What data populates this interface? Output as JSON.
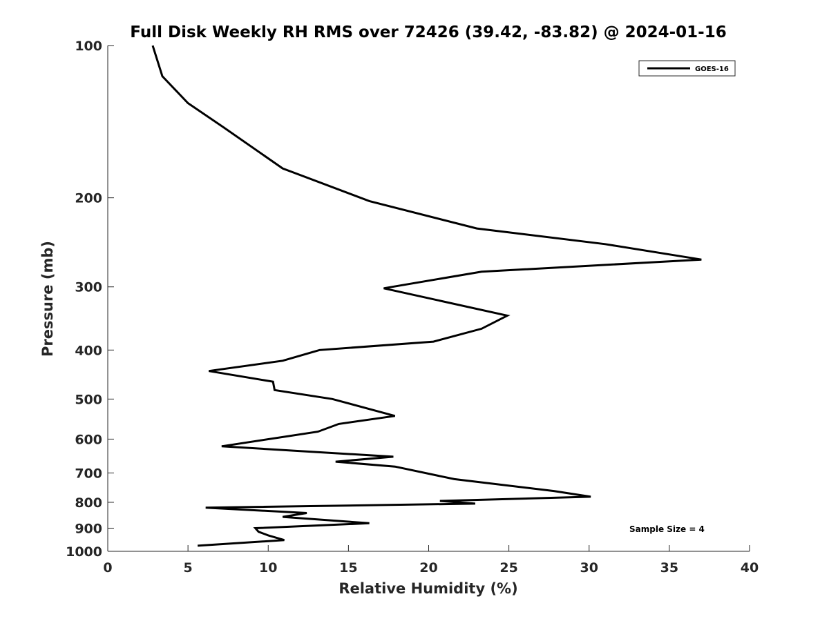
{
  "chart_data": {
    "type": "line",
    "title": "Full Disk Weekly RH RMS over 72426 (39.42, -83.82) @ 2024-01-16",
    "xlabel": "Relative Humidity (%)",
    "ylabel": "Pressure (mb)",
    "xlim": [
      0,
      40
    ],
    "ylim": [
      100,
      1000
    ],
    "y_scale": "log",
    "y_reversed": true,
    "x_ticks": [
      0,
      5,
      10,
      15,
      20,
      25,
      30,
      35,
      40
    ],
    "y_ticks": [
      100,
      200,
      300,
      400,
      500,
      600,
      700,
      800,
      900,
      1000
    ],
    "grid": false,
    "legend_position": "top-right",
    "annotation": "Sample Size = 4",
    "series": [
      {
        "name": "GOES-16",
        "color": "#000000",
        "x": [
          2.8,
          3.4,
          5.0,
          7.2,
          10.9,
          16.3,
          23.0,
          31.0,
          37.0,
          23.3,
          17.2,
          24.9,
          23.3,
          20.3,
          13.2,
          10.9,
          6.3,
          10.3,
          10.4,
          14.0,
          17.9,
          14.4,
          13.1,
          7.1,
          17.8,
          14.2,
          17.9,
          21.6,
          27.8,
          30.1,
          20.7,
          22.9,
          6.1,
          12.4,
          10.9,
          16.3,
          9.2,
          9.4,
          10.0,
          11.0,
          5.6
        ],
        "y": [
          100,
          115,
          130,
          145,
          175,
          203,
          230,
          247,
          265,
          280,
          302,
          342,
          363,
          385,
          400,
          420,
          440,
          462,
          480,
          500,
          540,
          560,
          580,
          620,
          650,
          665,
          680,
          720,
          760,
          780,
          795,
          805,
          820,
          840,
          855,
          880,
          900,
          915,
          930,
          950,
          975
        ]
      }
    ]
  }
}
